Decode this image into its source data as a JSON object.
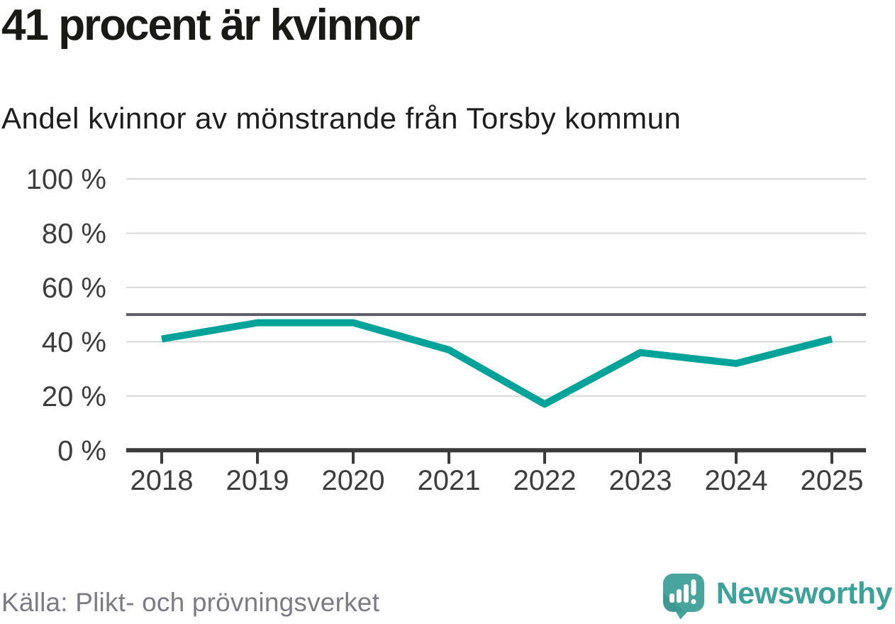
{
  "chart_data": {
    "type": "line",
    "title": "41 procent är kvinnor",
    "subtitle": "Andel kvinnor av mönstrande från Torsby kommun",
    "categories": [
      "2018",
      "2019",
      "2020",
      "2021",
      "2022",
      "2023",
      "2024",
      "2025"
    ],
    "series": [
      {
        "name": "Andel kvinnor av mönstrande från Torsby kommun",
        "values": [
          41,
          47,
          47,
          37,
          17,
          36,
          32,
          41
        ]
      }
    ],
    "xlabel": "",
    "ylabel": "",
    "ylim": [
      0,
      100
    ],
    "yticks": [
      0,
      20,
      40,
      60,
      80,
      100
    ],
    "ytick_labels": [
      "0 %",
      "20 %",
      "40 %",
      "60 %",
      "80 %",
      "100 %"
    ],
    "reference_line": 50,
    "grid": true,
    "legend": "none",
    "line_color": "#00a39a",
    "reference_line_color": "#5b5c63",
    "gridline_color": "#d9d9d9",
    "axis_color": "#3b3b3b",
    "tick_label_color": "#3d3d3d"
  },
  "footer": {
    "source": "Källa: Plikt- och prövningsverket",
    "brand": "Newsworthy"
  },
  "colors": {
    "brand_teal": "#3aa19b",
    "logo_bubble": "#47a59d",
    "line_teal": "#00a39a",
    "title_text": "#191916",
    "source_text": "#7b7b83"
  }
}
